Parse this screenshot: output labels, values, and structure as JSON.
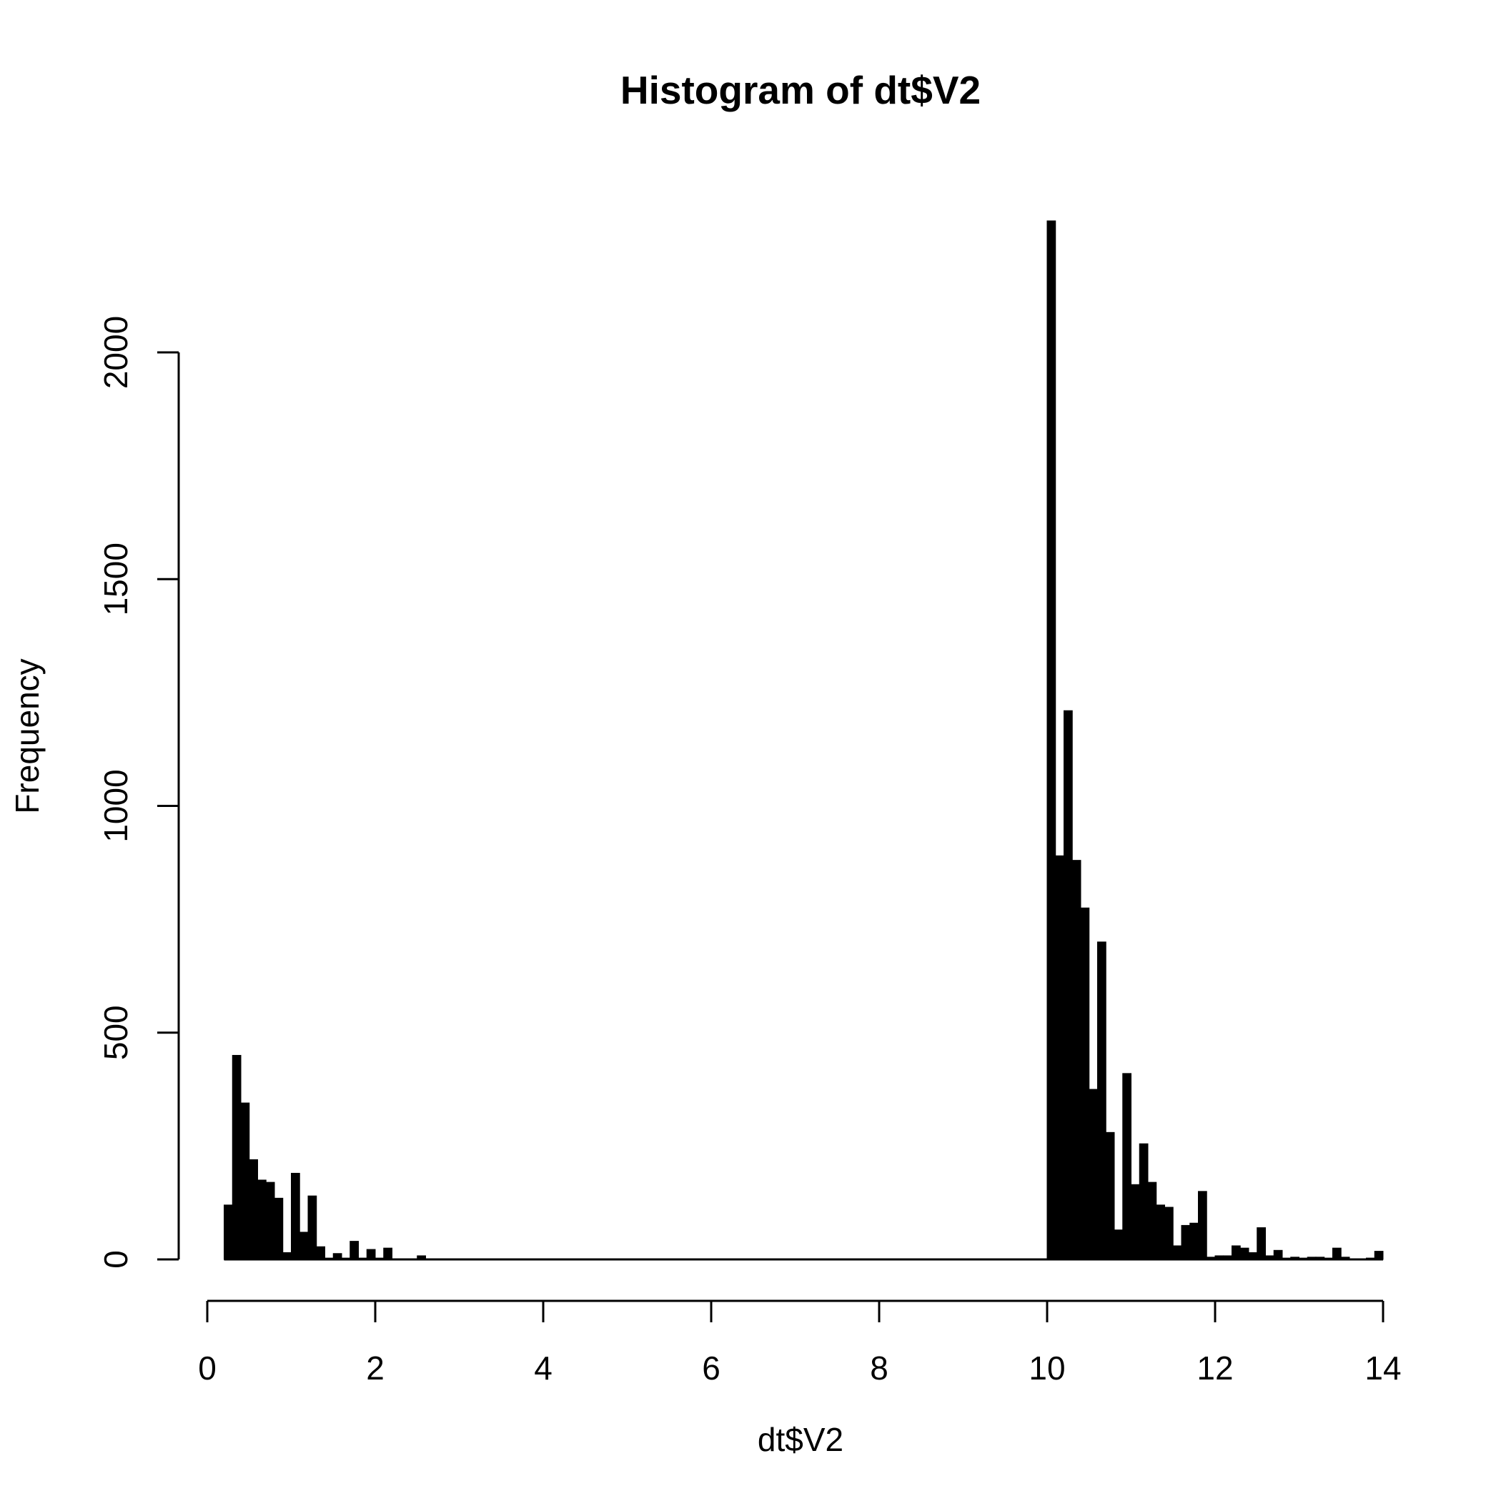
{
  "chart_data": {
    "type": "bar",
    "title": "Histogram of dt$V2",
    "xlabel": "dt$V2",
    "ylabel": "Frequency",
    "xlim": [
      0,
      14
    ],
    "ylim": [
      0,
      2000
    ],
    "x_ticks": [
      0,
      2,
      4,
      6,
      8,
      10,
      12,
      14
    ],
    "y_ticks": [
      0,
      500,
      1000,
      1500,
      2000
    ],
    "grid": false,
    "bar_color": "#000000",
    "bin_width": 0.1,
    "bins_start": [
      0.2,
      0.3,
      0.4,
      0.5,
      0.6,
      0.7,
      0.8,
      0.9,
      1.0,
      1.1,
      1.2,
      1.3,
      1.4,
      1.5,
      1.6,
      1.7,
      1.8,
      1.9,
      2.0,
      2.1,
      2.2,
      2.3,
      2.4,
      2.5,
      10.0,
      10.1,
      10.2,
      10.3,
      10.4,
      10.5,
      10.6,
      10.7,
      10.8,
      10.9,
      11.0,
      11.1,
      11.2,
      11.3,
      11.4,
      11.5,
      11.6,
      11.7,
      11.8,
      11.9,
      12.0,
      12.1,
      12.2,
      12.3,
      12.4,
      12.5,
      12.6,
      12.7,
      12.8,
      12.9,
      13.0,
      13.1,
      13.2,
      13.3,
      13.4,
      13.5,
      13.6,
      13.7,
      13.8,
      13.9
    ],
    "values": [
      120,
      450,
      345,
      220,
      175,
      170,
      135,
      15,
      190,
      60,
      140,
      28,
      3,
      13,
      3,
      40,
      3,
      22,
      3,
      25,
      0,
      0,
      0,
      8,
      2290,
      890,
      1210,
      880,
      775,
      375,
      700,
      280,
      65,
      410,
      165,
      255,
      170,
      120,
      115,
      30,
      75,
      80,
      150,
      5,
      8,
      8,
      30,
      25,
      15,
      70,
      8,
      20,
      3,
      5,
      3,
      5,
      5,
      3,
      25,
      5,
      0,
      0,
      3,
      18
    ]
  }
}
